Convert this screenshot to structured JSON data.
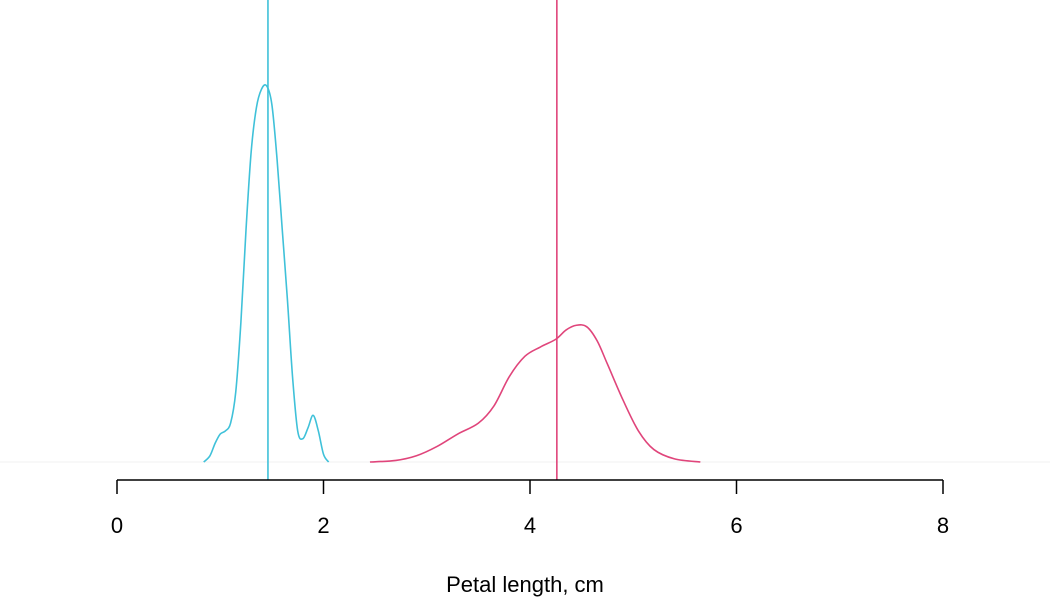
{
  "chart_data": {
    "type": "area",
    "xlabel": "Petal length, cm",
    "ylabel": "",
    "xlim": [
      0,
      8
    ],
    "xticks": [
      0,
      2,
      4,
      6,
      8
    ],
    "ylim": [
      0,
      2.6
    ],
    "grid": false,
    "legend": "none",
    "series": [
      {
        "color": "#3fc1d9",
        "mean": 1.462,
        "points": [
          [
            0.84,
            0.0
          ],
          [
            0.9,
            0.04
          ],
          [
            0.95,
            0.12
          ],
          [
            1.0,
            0.18
          ],
          [
            1.05,
            0.2
          ],
          [
            1.1,
            0.25
          ],
          [
            1.15,
            0.45
          ],
          [
            1.2,
            0.9
          ],
          [
            1.25,
            1.5
          ],
          [
            1.3,
            2.0
          ],
          [
            1.35,
            2.28
          ],
          [
            1.4,
            2.4
          ],
          [
            1.45,
            2.42
          ],
          [
            1.5,
            2.3
          ],
          [
            1.55,
            1.95
          ],
          [
            1.6,
            1.5
          ],
          [
            1.65,
            1.05
          ],
          [
            1.7,
            0.55
          ],
          [
            1.75,
            0.2
          ],
          [
            1.8,
            0.15
          ],
          [
            1.85,
            0.22
          ],
          [
            1.9,
            0.3
          ],
          [
            1.95,
            0.2
          ],
          [
            2.0,
            0.05
          ],
          [
            2.05,
            0.0
          ]
        ]
      },
      {
        "color": "#e0457b",
        "mean": 4.26,
        "points": [
          [
            2.45,
            0.0
          ],
          [
            2.7,
            0.01
          ],
          [
            2.9,
            0.04
          ],
          [
            3.1,
            0.1
          ],
          [
            3.3,
            0.18
          ],
          [
            3.5,
            0.25
          ],
          [
            3.65,
            0.36
          ],
          [
            3.8,
            0.55
          ],
          [
            3.95,
            0.68
          ],
          [
            4.1,
            0.74
          ],
          [
            4.25,
            0.79
          ],
          [
            4.35,
            0.85
          ],
          [
            4.45,
            0.88
          ],
          [
            4.55,
            0.87
          ],
          [
            4.65,
            0.78
          ],
          [
            4.75,
            0.63
          ],
          [
            4.9,
            0.4
          ],
          [
            5.05,
            0.2
          ],
          [
            5.2,
            0.08
          ],
          [
            5.4,
            0.02
          ],
          [
            5.65,
            0.0
          ]
        ]
      }
    ]
  }
}
